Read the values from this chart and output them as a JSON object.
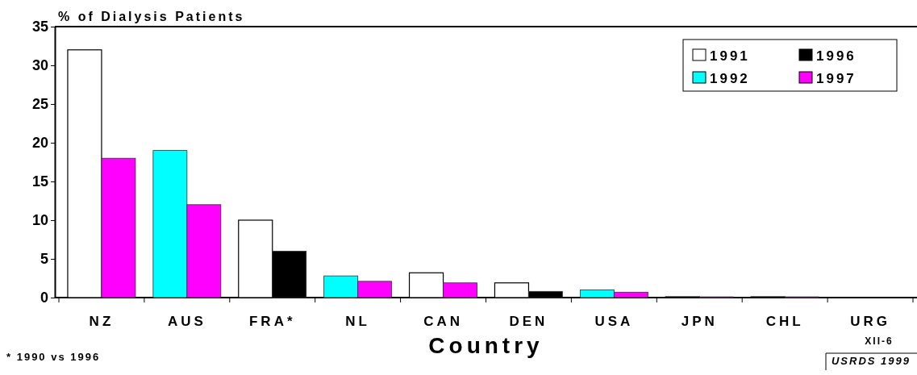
{
  "chart_data": {
    "type": "bar",
    "ylabel": "% of Dialysis Patients",
    "xlabel": "Country",
    "categories": [
      "NZ",
      "AUS",
      "FRA*",
      "NL",
      "CAN",
      "DEN",
      "USA",
      "JPN",
      "CHL",
      "URG"
    ],
    "series": [
      {
        "name": "1991",
        "color": "#ffffff",
        "values": [
          32,
          null,
          10,
          null,
          3.2,
          1.9,
          null,
          0.1,
          0.1,
          0
        ]
      },
      {
        "name": "1992",
        "color": "#00ffff",
        "values": [
          null,
          19,
          null,
          2.8,
          null,
          null,
          1.0,
          null,
          null,
          null
        ]
      },
      {
        "name": "1996",
        "color": "#000000",
        "values": [
          null,
          null,
          6,
          null,
          null,
          0.8,
          null,
          null,
          null,
          null
        ]
      },
      {
        "name": "1997",
        "color": "#ff00ff",
        "values": [
          18,
          12,
          null,
          2.1,
          1.9,
          null,
          0.7,
          0.1,
          0.1,
          0
        ]
      }
    ],
    "ylim": [
      0,
      35
    ],
    "yticks": [
      0,
      5,
      10,
      15,
      20,
      25,
      30,
      35
    ],
    "grid": false,
    "legend": "top right",
    "annotations": [
      "* 1990 vs 1996",
      "XII-6",
      "USRDS 1999"
    ]
  }
}
